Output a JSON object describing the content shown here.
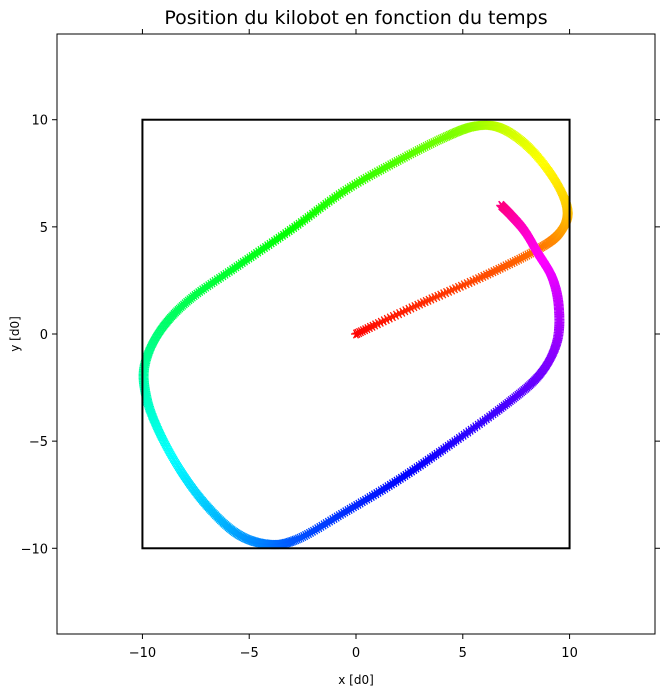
{
  "chart_data": {
    "type": "scatter",
    "title": "Position du kilobot en fonction du temps",
    "xlabel": "x [d0]",
    "ylabel": "y [d0]",
    "xlim": [
      -14,
      14
    ],
    "ylim": [
      -14,
      14
    ],
    "xticks": [
      -10,
      -5,
      0,
      5,
      10
    ],
    "yticks": [
      -10,
      -5,
      0,
      5,
      10
    ],
    "grid": false,
    "marker": "star",
    "colormap": "hsv",
    "arena": {
      "x": [
        -10,
        10
      ],
      "y": [
        -10,
        10
      ],
      "color": "#000000"
    },
    "path": [
      [
        0,
        0
      ],
      [
        3,
        1.4
      ],
      [
        6.2,
        2.8
      ],
      [
        8.6,
        4.0
      ],
      [
        9.6,
        4.8
      ],
      [
        9.9,
        5.8
      ],
      [
        9.3,
        7.2
      ],
      [
        8.1,
        8.7
      ],
      [
        6.8,
        9.6
      ],
      [
        5.6,
        9.7
      ],
      [
        4.2,
        9.2
      ],
      [
        2,
        8.1
      ],
      [
        -0.5,
        6.7
      ],
      [
        -3,
        4.9
      ],
      [
        -5.5,
        3.2
      ],
      [
        -7.8,
        1.6
      ],
      [
        -9.2,
        0.1
      ],
      [
        -9.9,
        -1.5
      ],
      [
        -9.8,
        -3
      ],
      [
        -9.2,
        -4.6
      ],
      [
        -8.2,
        -6.4
      ],
      [
        -7,
        -8
      ],
      [
        -5.6,
        -9.3
      ],
      [
        -4.2,
        -9.8
      ],
      [
        -2.8,
        -9.6
      ],
      [
        -0.5,
        -8.3
      ],
      [
        2,
        -6.8
      ],
      [
        4.5,
        -5.1
      ],
      [
        7,
        -3.3
      ],
      [
        8.6,
        -1.9
      ],
      [
        9.4,
        -0.4
      ],
      [
        9.5,
        1.2
      ],
      [
        9.2,
        2.6
      ],
      [
        8.5,
        3.8
      ],
      [
        7.9,
        4.8
      ],
      [
        7.3,
        5.5
      ],
      [
        6.8,
        6.0
      ]
    ]
  }
}
